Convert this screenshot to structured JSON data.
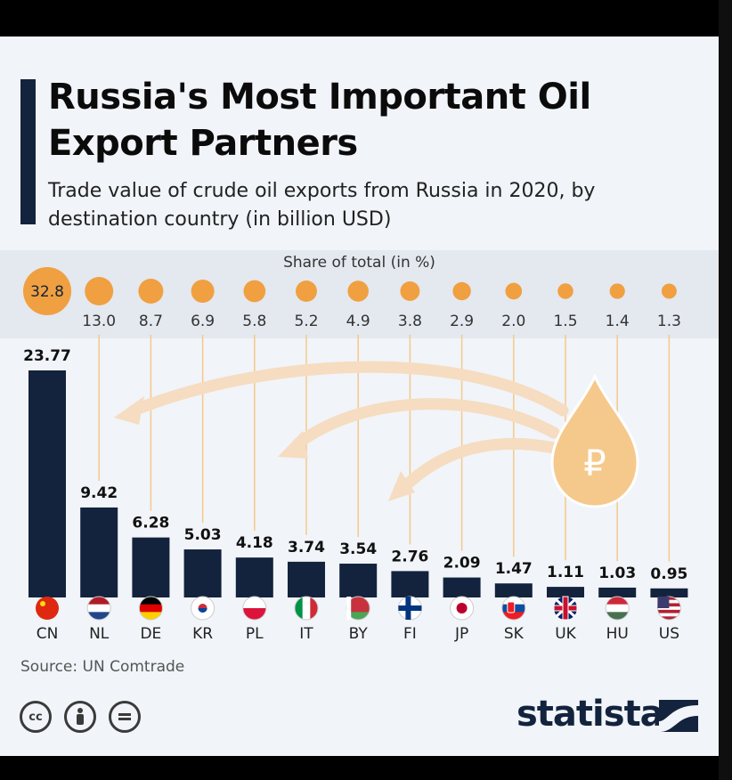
{
  "title": "Russia's Most Important Oil Export Partners",
  "subtitle": "Trade value of crude oil exports from Russia in 2020, by destination country (in billion USD)",
  "share_label": "Share of total (in %)",
  "source": "Source: UN Comtrade",
  "brand": "statista",
  "icons": {
    "license": [
      "cc-icon",
      "attribution-icon",
      "no-derivatives-icon"
    ],
    "drop": "ruble-oil-drop-icon",
    "arrows": "curved-arrow-icon"
  },
  "colors": {
    "bar": "#13233d",
    "share_dot": "#f0a040",
    "drop": "#f5c98b",
    "arrow": "#f6dcc0"
  },
  "chart_data": {
    "type": "bar",
    "categories": [
      "CN",
      "NL",
      "DE",
      "KR",
      "PL",
      "IT",
      "BY",
      "FI",
      "JP",
      "SK",
      "UK",
      "HU",
      "US"
    ],
    "values": [
      23.77,
      9.42,
      6.28,
      5.03,
      4.18,
      3.74,
      3.54,
      2.76,
      2.09,
      1.47,
      1.11,
      1.03,
      0.95
    ],
    "value_labels": [
      "23.77",
      "9.42",
      "6.28",
      "5.03",
      "4.18",
      "3.74",
      "3.54",
      "2.76",
      "2.09",
      "1.47",
      "1.11",
      "1.03",
      "0.95"
    ],
    "share_percent": [
      32.8,
      13.0,
      8.7,
      6.9,
      5.8,
      5.2,
      4.9,
      3.8,
      2.9,
      2.0,
      1.5,
      1.4,
      1.3
    ],
    "share_labels": [
      "32.8",
      "13.0",
      "8.7",
      "6.9",
      "5.8",
      "5.2",
      "4.9",
      "3.8",
      "2.9",
      "2.0",
      "1.5",
      "1.4",
      "1.3"
    ],
    "flags": [
      "china-flag-icon",
      "netherlands-flag-icon",
      "germany-flag-icon",
      "south-korea-flag-icon",
      "poland-flag-icon",
      "italy-flag-icon",
      "belarus-flag-icon",
      "finland-flag-icon",
      "japan-flag-icon",
      "slovakia-flag-icon",
      "uk-flag-icon",
      "hungary-flag-icon",
      "us-flag-icon"
    ],
    "ylim": [
      0,
      23.77
    ],
    "grid": false
  }
}
